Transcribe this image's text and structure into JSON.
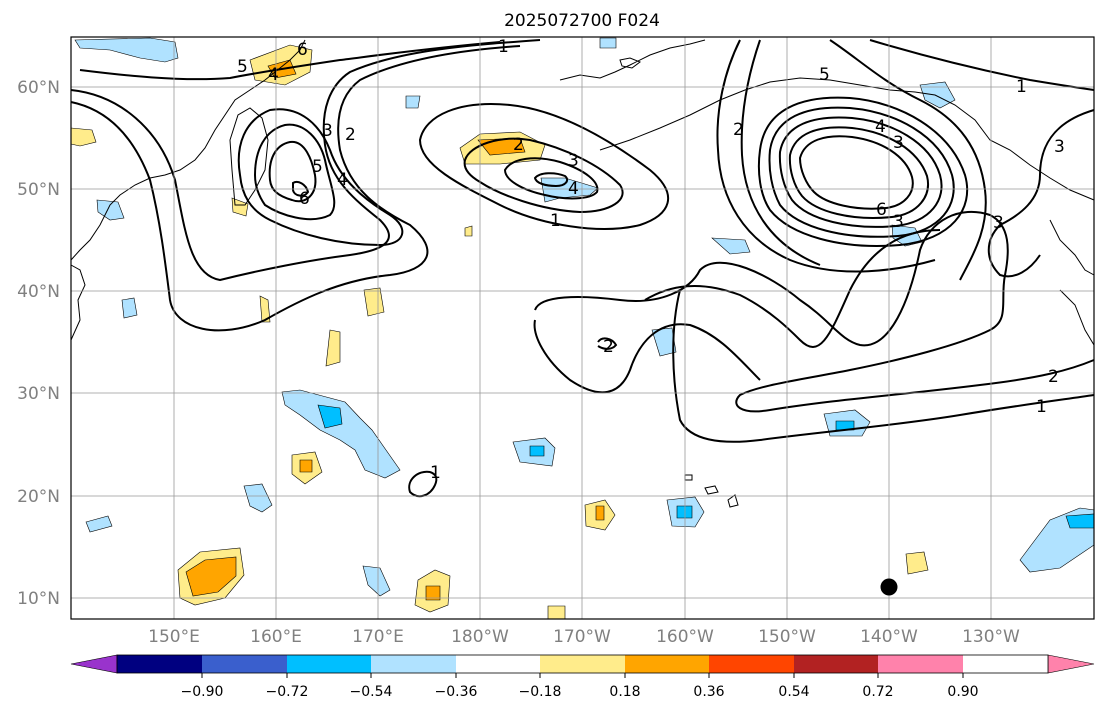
{
  "title": "2025072700 F024",
  "lat_labels": [
    "60°N",
    "50°N",
    "40°N",
    "30°N",
    "20°N",
    "10°N"
  ],
  "lon_labels": [
    "150°E",
    "160°E",
    "170°E",
    "180°W",
    "170°W",
    "160°W",
    "150°W",
    "140°W",
    "130°W"
  ],
  "contour_labels": [
    "1",
    "2",
    "3",
    "4",
    "5",
    "6",
    "4",
    "3",
    "2",
    "1",
    "2",
    "3",
    "4",
    "1",
    "3",
    "6",
    "5",
    "4",
    "3",
    "2",
    "1",
    "2",
    "1",
    "3",
    "2",
    "6",
    "5",
    "4",
    "3"
  ],
  "colorbar": {
    "ticks": [
      "−0.90",
      "−0.72",
      "−0.54",
      "−0.36",
      "−0.18",
      "0.18",
      "0.36",
      "0.54",
      "0.72",
      "0.90"
    ],
    "colors": [
      "#9933cc",
      "#000080",
      "#3a5fcd",
      "#00bfff",
      "#b0e2ff",
      "#ffffff",
      "#ffec8b",
      "#ffa500",
      "#ff4500",
      "#b22222",
      "#ff82ab"
    ]
  }
}
